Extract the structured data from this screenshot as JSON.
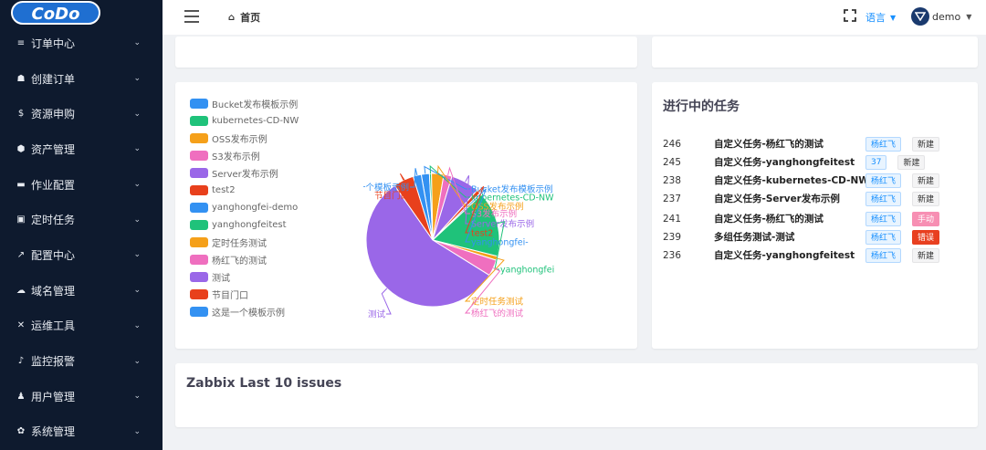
{
  "brand": {
    "logo_text": "CoDo"
  },
  "sidebar": {
    "items": [
      {
        "icon": "list-icon",
        "glyph": "≡",
        "label": "订单中心"
      },
      {
        "icon": "cart-icon",
        "glyph": "☗",
        "label": "创建订单"
      },
      {
        "icon": "dollar-icon",
        "glyph": "$",
        "label": "资源申购"
      },
      {
        "icon": "box-icon",
        "glyph": "⬢",
        "label": "资产管理"
      },
      {
        "icon": "briefcase-icon",
        "glyph": "▬",
        "label": "作业配置"
      },
      {
        "icon": "calendar-icon",
        "glyph": "▣",
        "label": "定时任务"
      },
      {
        "icon": "wrench-icon",
        "glyph": "↗",
        "label": "配置中心"
      },
      {
        "icon": "cloud-icon",
        "glyph": "☁",
        "label": "域名管理"
      },
      {
        "icon": "tools-icon",
        "glyph": "✕",
        "label": "运维工具"
      },
      {
        "icon": "bell-icon",
        "glyph": "♪",
        "label": "监控报警"
      },
      {
        "icon": "users-icon",
        "glyph": "♟",
        "label": "用户管理"
      },
      {
        "icon": "gear-icon",
        "glyph": "✿",
        "label": "系统管理"
      }
    ]
  },
  "header": {
    "breadcrumb": "首页",
    "language_label": "语言",
    "username": "demo"
  },
  "chart_data": {
    "type": "pie",
    "series": [
      {
        "name": "Bucket发布模板示例",
        "value": 2,
        "color": "#3391f2"
      },
      {
        "name": "kubernetes-CD-NW",
        "value": 0.5,
        "color": "#1fc27a"
      },
      {
        "name": "OSS发布示例",
        "value": 3,
        "color": "#f5a01a"
      },
      {
        "name": "S3发布示例",
        "value": 2,
        "color": "#ef6fbf"
      },
      {
        "name": "Server发布示例",
        "value": 7,
        "color": "#9a67e8"
      },
      {
        "name": "test2",
        "value": 1,
        "color": "#e8401c"
      },
      {
        "name": "yanghongfei-demo",
        "value": 0.5,
        "color": "#3391f2"
      },
      {
        "name": "yanghongfeitest",
        "value": 16,
        "color": "#1fc27a"
      },
      {
        "name": "定时任务测试",
        "value": 1,
        "color": "#f5a01a"
      },
      {
        "name": "杨红飞的测试",
        "value": 4,
        "color": "#ef6fbf"
      },
      {
        "name": "测试",
        "value": 57,
        "color": "#9a67e8"
      },
      {
        "name": "节目门口",
        "value": 5,
        "color": "#e8401c"
      },
      {
        "name": "这是一个模板示例",
        "value": 2,
        "color": "#3391f2"
      }
    ],
    "pie_labels": {
      "yanghongfei-demo": "yanghongfei-",
      "yanghongfeitest": "yanghongfei"
    },
    "legend_placement": "left"
  },
  "tasks": {
    "title": "进行中的任务",
    "rows": [
      {
        "id": "246",
        "name": "自定义任务-杨红飞的测试",
        "owner": "杨红飞",
        "status": "新建",
        "status_type": "new"
      },
      {
        "id": "245",
        "name": "自定义任务-yanghongfeitest",
        "owner": "37",
        "status": "新建",
        "status_type": "new"
      },
      {
        "id": "238",
        "name": "自定义任务-kubernetes-CD-NW",
        "owner": "杨红飞",
        "status": "新建",
        "status_type": "new"
      },
      {
        "id": "237",
        "name": "自定义任务-Server发布示例",
        "owner": "杨红飞",
        "status": "新建",
        "status_type": "new"
      },
      {
        "id": "241",
        "name": "自定义任务-杨红飞的测试",
        "owner": "杨红飞",
        "status": "手动",
        "status_type": "manual"
      },
      {
        "id": "239",
        "name": "多组任务测试-测试",
        "owner": "杨红飞",
        "status": "错误",
        "status_type": "error"
      },
      {
        "id": "236",
        "name": "自定义任务-yanghongfeitest",
        "owner": "杨红飞",
        "status": "新建",
        "status_type": "new"
      }
    ]
  },
  "zabbix": {
    "title": "Zabbix Last 10 issues"
  }
}
